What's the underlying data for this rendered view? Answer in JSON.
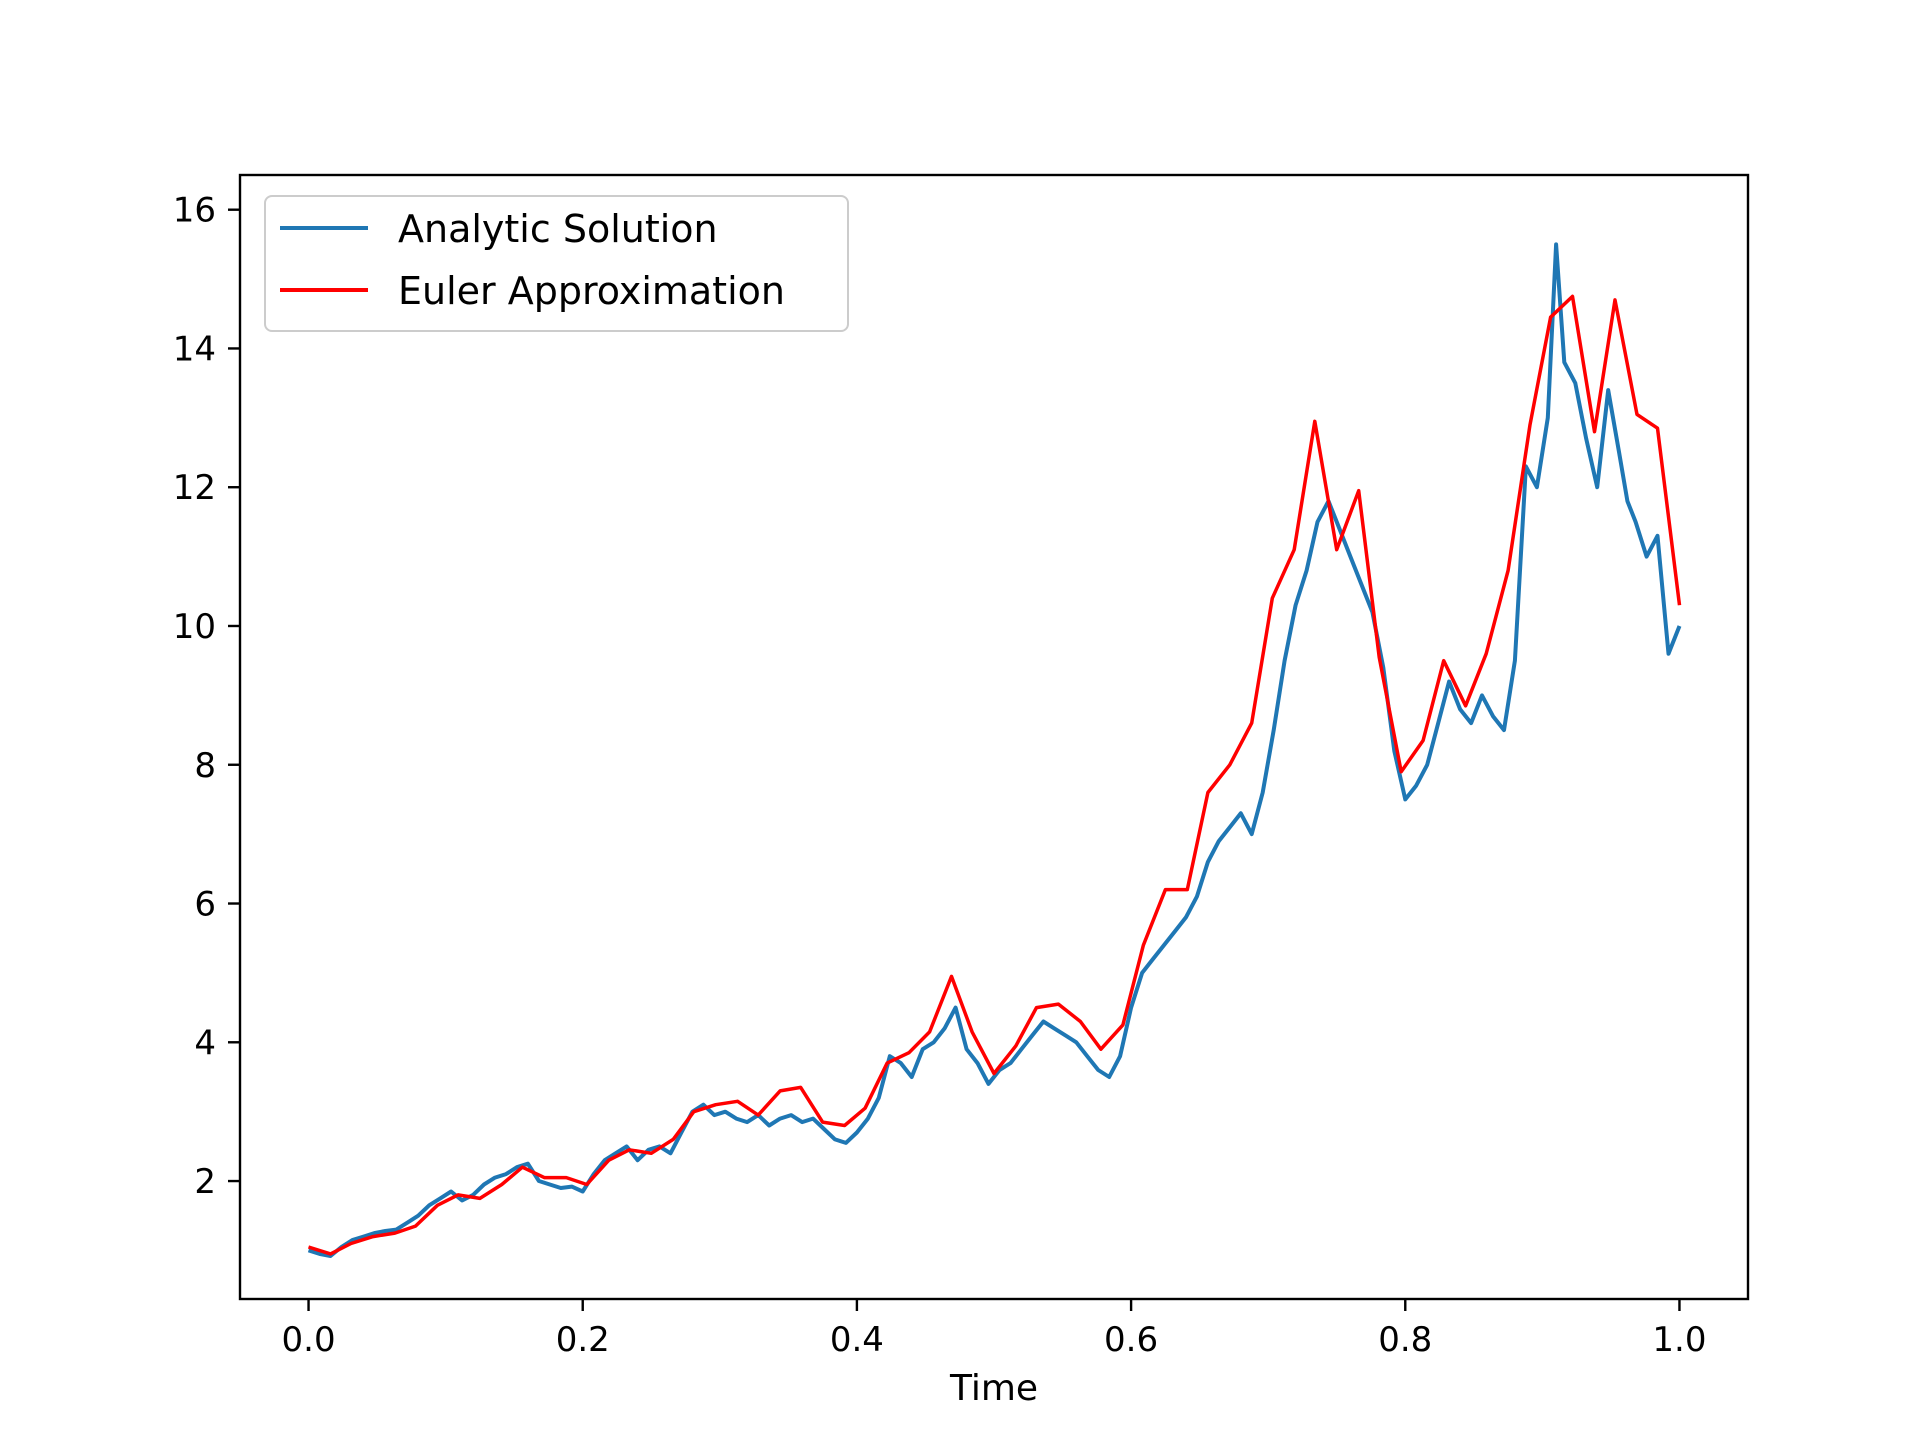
{
  "chart_data": {
    "type": "line",
    "title": "",
    "xlabel": "Time",
    "ylabel": "",
    "xlim": [
      -0.05,
      1.05
    ],
    "ylim": [
      0.3,
      16.5
    ],
    "grid": false,
    "legend_position": "top-left",
    "x_ticks": [
      0.0,
      0.2,
      0.4,
      0.6,
      0.8,
      1.0
    ],
    "x_tick_labels": [
      "0.0",
      "0.2",
      "0.4",
      "0.6",
      "0.8",
      "1.0"
    ],
    "y_ticks": [
      2,
      4,
      6,
      8,
      10,
      12,
      14,
      16
    ],
    "y_tick_labels": [
      "2",
      "4",
      "6",
      "8",
      "10",
      "12",
      "14",
      "16"
    ],
    "series": [
      {
        "name": "Analytic Solution",
        "color": "#1f77b4",
        "x": [
          0.0,
          0.008,
          0.016,
          0.024,
          0.032,
          0.04,
          0.048,
          0.056,
          0.064,
          0.072,
          0.08,
          0.088,
          0.096,
          0.104,
          0.112,
          0.12,
          0.128,
          0.136,
          0.144,
          0.152,
          0.16,
          0.168,
          0.176,
          0.184,
          0.192,
          0.2,
          0.208,
          0.216,
          0.224,
          0.232,
          0.24,
          0.248,
          0.256,
          0.264,
          0.272,
          0.28,
          0.288,
          0.296,
          0.304,
          0.312,
          0.32,
          0.328,
          0.336,
          0.344,
          0.352,
          0.36,
          0.368,
          0.376,
          0.384,
          0.392,
          0.4,
          0.408,
          0.416,
          0.424,
          0.432,
          0.44,
          0.448,
          0.456,
          0.464,
          0.472,
          0.48,
          0.488,
          0.496,
          0.504,
          0.512,
          0.52,
          0.528,
          0.536,
          0.544,
          0.552,
          0.56,
          0.568,
          0.576,
          0.584,
          0.592,
          0.6,
          0.608,
          0.616,
          0.624,
          0.632,
          0.64,
          0.648,
          0.656,
          0.664,
          0.672,
          0.68,
          0.688,
          0.696,
          0.704,
          0.712,
          0.72,
          0.728,
          0.736,
          0.744,
          0.752,
          0.76,
          0.768,
          0.776,
          0.784,
          0.792,
          0.8,
          0.808,
          0.816,
          0.824,
          0.832,
          0.84,
          0.848,
          0.856,
          0.864,
          0.872,
          0.88,
          0.888,
          0.896,
          0.904,
          0.91,
          0.916,
          0.924,
          0.932,
          0.94,
          0.948,
          0.956,
          0.962,
          0.968,
          0.976,
          0.984,
          0.992,
          1.0
        ],
        "y": [
          1.0,
          0.95,
          0.92,
          1.05,
          1.15,
          1.2,
          1.25,
          1.28,
          1.3,
          1.4,
          1.5,
          1.65,
          1.75,
          1.85,
          1.72,
          1.8,
          1.95,
          2.05,
          2.1,
          2.2,
          2.25,
          2.0,
          1.95,
          1.9,
          1.92,
          1.85,
          2.1,
          2.3,
          2.4,
          2.5,
          2.3,
          2.45,
          2.5,
          2.4,
          2.7,
          3.0,
          3.1,
          2.95,
          3.0,
          2.9,
          2.85,
          2.95,
          2.8,
          2.9,
          2.95,
          2.85,
          2.9,
          2.75,
          2.6,
          2.55,
          2.7,
          2.9,
          3.2,
          3.8,
          3.7,
          3.5,
          3.9,
          4.0,
          4.2,
          4.5,
          3.9,
          3.7,
          3.4,
          3.6,
          3.7,
          3.9,
          4.1,
          4.3,
          4.2,
          4.1,
          4.0,
          3.8,
          3.6,
          3.5,
          3.8,
          4.5,
          5.0,
          5.2,
          5.4,
          5.6,
          5.8,
          6.1,
          6.6,
          6.9,
          7.1,
          7.3,
          7.0,
          7.6,
          8.5,
          9.5,
          10.3,
          10.8,
          11.5,
          11.8,
          11.4,
          11.0,
          10.6,
          10.2,
          9.4,
          8.2,
          7.5,
          7.7,
          8.0,
          8.6,
          9.2,
          8.8,
          8.6,
          9.0,
          8.7,
          8.5,
          9.5,
          12.3,
          12.0,
          13.0,
          15.5,
          13.8,
          13.5,
          12.7,
          12.0,
          13.4,
          12.5,
          11.8,
          11.5,
          11.0,
          11.3,
          9.6,
          10.0
        ]
      },
      {
        "name": "Euler Approximation",
        "color": "#ff0000",
        "x": [
          0.0,
          0.016,
          0.031,
          0.047,
          0.063,
          0.078,
          0.094,
          0.109,
          0.125,
          0.141,
          0.156,
          0.172,
          0.188,
          0.203,
          0.219,
          0.234,
          0.25,
          0.266,
          0.281,
          0.297,
          0.313,
          0.328,
          0.344,
          0.359,
          0.375,
          0.391,
          0.406,
          0.422,
          0.438,
          0.453,
          0.469,
          0.484,
          0.5,
          0.516,
          0.531,
          0.547,
          0.563,
          0.578,
          0.594,
          0.609,
          0.625,
          0.641,
          0.656,
          0.672,
          0.688,
          0.703,
          0.719,
          0.734,
          0.75,
          0.766,
          0.781,
          0.797,
          0.813,
          0.828,
          0.844,
          0.859,
          0.875,
          0.891,
          0.906,
          0.922,
          0.938,
          0.953,
          0.969,
          0.984,
          1.0
        ],
        "y": [
          1.05,
          0.95,
          1.1,
          1.2,
          1.25,
          1.35,
          1.65,
          1.8,
          1.75,
          1.95,
          2.2,
          2.05,
          2.05,
          1.95,
          2.3,
          2.45,
          2.4,
          2.6,
          3.0,
          3.1,
          3.15,
          2.95,
          3.3,
          3.35,
          2.85,
          2.8,
          3.05,
          3.7,
          3.85,
          4.15,
          4.95,
          4.15,
          3.55,
          3.95,
          4.5,
          4.55,
          4.3,
          3.9,
          4.25,
          5.4,
          6.2,
          6.2,
          7.6,
          8.0,
          8.6,
          10.4,
          11.1,
          12.95,
          11.1,
          11.95,
          9.55,
          7.9,
          8.35,
          9.5,
          8.85,
          9.6,
          10.8,
          12.9,
          14.45,
          14.75,
          12.8,
          14.7,
          13.05,
          12.85,
          10.3
        ]
      }
    ]
  }
}
